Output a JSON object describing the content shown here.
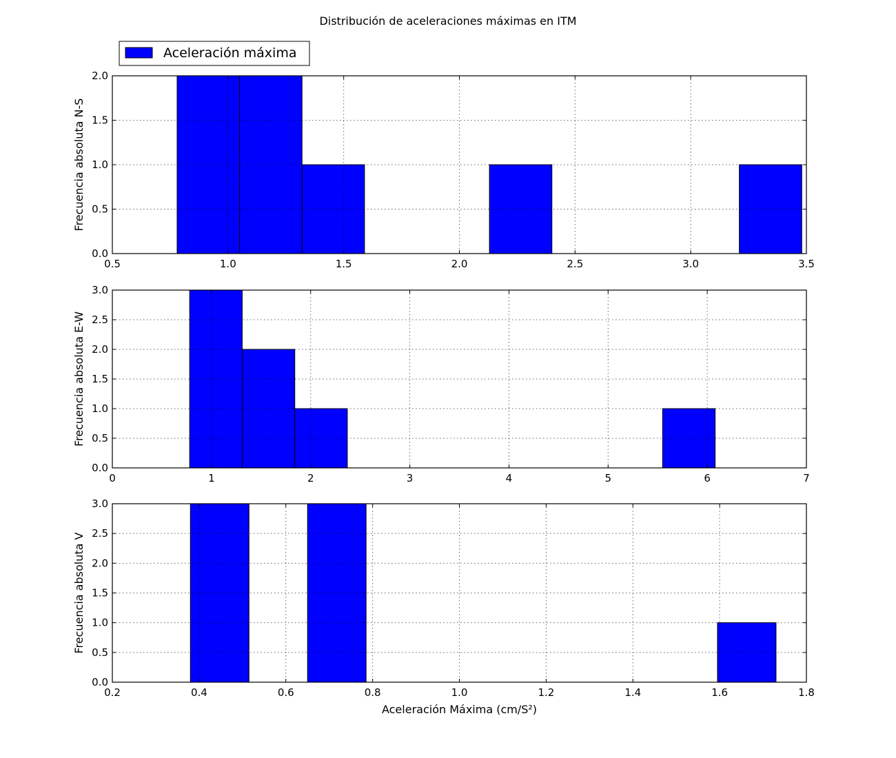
{
  "figure": {
    "title": "Distribución de aceleraciones máximas en ITM",
    "bar_color": "#0000ff",
    "edge_color": "#000000"
  },
  "legend": {
    "label": "Aceleración máxima",
    "placement": "upper-left, above the first panel"
  },
  "chart_data": [
    {
      "type": "bar",
      "subtype": "histogram",
      "ylabel": "Frecuencia absoluta N-S",
      "xlabel": "",
      "xlim": [
        0.5,
        3.5
      ],
      "ylim": [
        0.0,
        2.0
      ],
      "xticks": [
        0.5,
        1.0,
        1.5,
        2.0,
        2.5,
        3.0,
        3.5
      ],
      "xtick_labels": [
        "0.5",
        "1.0",
        "1.5",
        "2.0",
        "2.5",
        "3.0",
        "3.5"
      ],
      "yticks": [
        0.0,
        0.5,
        1.0,
        1.5,
        2.0
      ],
      "ytick_labels": [
        "0.0",
        "0.5",
        "1.0",
        "1.5",
        "2.0"
      ],
      "grid": true,
      "bin_edges": [
        0.78,
        1.05,
        1.32,
        1.59,
        1.86,
        2.13,
        2.4,
        2.67,
        2.94,
        3.21,
        3.48
      ],
      "counts": [
        2,
        2,
        1,
        0,
        0,
        1,
        0,
        0,
        0,
        1
      ]
    },
    {
      "type": "bar",
      "subtype": "histogram",
      "ylabel": "Frecuencia absoluta E-W",
      "xlabel": "",
      "xlim": [
        0,
        7
      ],
      "ylim": [
        0.0,
        3.0
      ],
      "xticks": [
        0,
        1,
        2,
        3,
        4,
        5,
        6,
        7
      ],
      "xtick_labels": [
        "0",
        "1",
        "2",
        "3",
        "4",
        "5",
        "6",
        "7"
      ],
      "yticks": [
        0.0,
        0.5,
        1.0,
        1.5,
        2.0,
        2.5,
        3.0
      ],
      "ytick_labels": [
        "0.0",
        "0.5",
        "1.0",
        "1.5",
        "2.0",
        "2.5",
        "3.0"
      ],
      "grid": true,
      "bin_edges": [
        0.78,
        1.31,
        1.84,
        2.37,
        2.9,
        3.43,
        3.96,
        4.49,
        5.02,
        5.55,
        6.08
      ],
      "counts": [
        3,
        2,
        1,
        0,
        0,
        0,
        0,
        0,
        0,
        1
      ]
    },
    {
      "type": "bar",
      "subtype": "histogram",
      "ylabel": "Frecuencia absoluta V",
      "xlabel": "Aceleración Máxima (cm/S²)",
      "xlim": [
        0.2,
        1.8
      ],
      "ylim": [
        0.0,
        3.0
      ],
      "xticks": [
        0.2,
        0.4,
        0.6,
        0.8,
        1.0,
        1.2,
        1.4,
        1.6,
        1.8
      ],
      "xtick_labels": [
        "0.2",
        "0.4",
        "0.6",
        "0.8",
        "1.0",
        "1.2",
        "1.4",
        "1.6",
        "1.8"
      ],
      "yticks": [
        0.0,
        0.5,
        1.0,
        1.5,
        2.0,
        2.5,
        3.0
      ],
      "ytick_labels": [
        "0.0",
        "0.5",
        "1.0",
        "1.5",
        "2.0",
        "2.5",
        "3.0"
      ],
      "grid": true,
      "bin_edges": [
        0.38,
        0.515,
        0.65,
        0.785,
        0.92,
        1.055,
        1.19,
        1.325,
        1.46,
        1.595,
        1.73
      ],
      "counts": [
        3,
        0,
        3,
        0,
        0,
        0,
        0,
        0,
        0,
        1
      ]
    }
  ]
}
